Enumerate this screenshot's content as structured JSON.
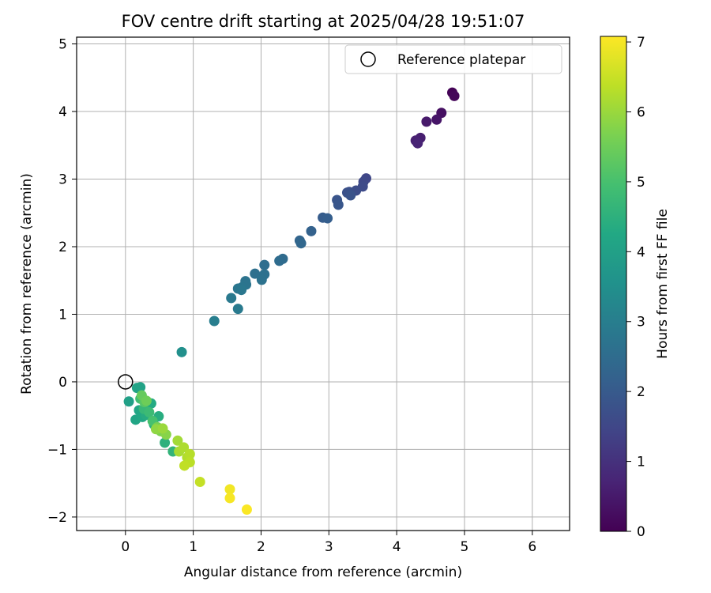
{
  "chart_data": {
    "type": "scatter",
    "title": "FOV centre drift starting at 2025/04/28 19:51:07",
    "xlabel": "Angular distance from reference (arcmin)",
    "ylabel": "Rotation from reference (arcmin)",
    "xlim": [
      -0.72,
      6.55
    ],
    "ylim": [
      -2.2,
      5.1
    ],
    "xticks": [
      0,
      1,
      2,
      3,
      4,
      5,
      6
    ],
    "yticks": [
      -2,
      -1,
      0,
      1,
      2,
      3,
      4,
      5
    ],
    "xtick_labels": [
      "0",
      "1",
      "2",
      "3",
      "4",
      "5",
      "6"
    ],
    "ytick_labels": [
      "−2",
      "−1",
      "0",
      "1",
      "2",
      "3",
      "4",
      "5"
    ],
    "grid": true,
    "legend": {
      "placement": "top-right",
      "entries": [
        {
          "label": "Reference platepar",
          "marker": "open-circle"
        }
      ]
    },
    "reference_point": {
      "x": 0,
      "y": 0
    },
    "colorbar": {
      "label": "Hours from first FF file",
      "range": [
        0,
        7.08
      ],
      "ticks": [
        0,
        1,
        2,
        3,
        4,
        5,
        6,
        7
      ],
      "tick_labels": [
        "0",
        "1",
        "2",
        "3",
        "4",
        "5",
        "6",
        "7"
      ],
      "colormap": "viridis"
    },
    "points": [
      {
        "x": 4.82,
        "y": 4.28,
        "t": 0.05
      },
      {
        "x": 4.85,
        "y": 4.23,
        "t": 0.1
      },
      {
        "x": 4.66,
        "y": 3.98,
        "t": 0.3
      },
      {
        "x": 4.59,
        "y": 3.88,
        "t": 0.4
      },
      {
        "x": 4.44,
        "y": 3.85,
        "t": 0.5
      },
      {
        "x": 4.35,
        "y": 3.61,
        "t": 0.6
      },
      {
        "x": 4.28,
        "y": 3.57,
        "t": 0.65
      },
      {
        "x": 4.31,
        "y": 3.53,
        "t": 0.7
      },
      {
        "x": 3.55,
        "y": 3.01,
        "t": 1.5
      },
      {
        "x": 3.51,
        "y": 2.96,
        "t": 1.55
      },
      {
        "x": 3.5,
        "y": 2.89,
        "t": 1.6
      },
      {
        "x": 3.4,
        "y": 2.83,
        "t": 1.65
      },
      {
        "x": 3.3,
        "y": 2.81,
        "t": 1.7
      },
      {
        "x": 3.27,
        "y": 2.8,
        "t": 1.75
      },
      {
        "x": 3.32,
        "y": 2.76,
        "t": 1.8
      },
      {
        "x": 3.12,
        "y": 2.69,
        "t": 1.85
      },
      {
        "x": 3.14,
        "y": 2.62,
        "t": 1.9
      },
      {
        "x": 2.91,
        "y": 2.43,
        "t": 2.05
      },
      {
        "x": 2.98,
        "y": 2.42,
        "t": 2.1
      },
      {
        "x": 2.74,
        "y": 2.23,
        "t": 2.2
      },
      {
        "x": 2.57,
        "y": 2.09,
        "t": 2.3
      },
      {
        "x": 2.59,
        "y": 2.05,
        "t": 2.35
      },
      {
        "x": 2.32,
        "y": 1.82,
        "t": 2.45
      },
      {
        "x": 2.27,
        "y": 1.79,
        "t": 2.5
      },
      {
        "x": 2.05,
        "y": 1.73,
        "t": 2.55
      },
      {
        "x": 1.91,
        "y": 1.6,
        "t": 2.6
      },
      {
        "x": 2.05,
        "y": 1.59,
        "t": 2.62
      },
      {
        "x": 2.01,
        "y": 1.51,
        "t": 2.65
      },
      {
        "x": 1.77,
        "y": 1.49,
        "t": 2.7
      },
      {
        "x": 1.78,
        "y": 1.44,
        "t": 2.72
      },
      {
        "x": 1.72,
        "y": 1.4,
        "t": 2.75
      },
      {
        "x": 1.66,
        "y": 1.38,
        "t": 2.78
      },
      {
        "x": 1.71,
        "y": 1.36,
        "t": 2.8
      },
      {
        "x": 1.56,
        "y": 1.24,
        "t": 2.85
      },
      {
        "x": 1.66,
        "y": 1.08,
        "t": 2.9
      },
      {
        "x": 1.31,
        "y": 0.9,
        "t": 3.0
      },
      {
        "x": 0.83,
        "y": 0.44,
        "t": 3.5
      },
      {
        "x": 0.05,
        "y": -0.29,
        "t": 4.0
      },
      {
        "x": 0.22,
        "y": -0.08,
        "t": 4.05
      },
      {
        "x": 0.17,
        "y": -0.09,
        "t": 4.1
      },
      {
        "x": 0.15,
        "y": -0.56,
        "t": 4.15
      },
      {
        "x": 0.2,
        "y": -0.42,
        "t": 4.2
      },
      {
        "x": 0.25,
        "y": -0.52,
        "t": 4.25
      },
      {
        "x": 0.38,
        "y": -0.32,
        "t": 4.3
      },
      {
        "x": 0.3,
        "y": -0.49,
        "t": 4.35
      },
      {
        "x": 0.49,
        "y": -0.51,
        "t": 4.4
      },
      {
        "x": 0.42,
        "y": -0.63,
        "t": 4.45
      },
      {
        "x": 0.58,
        "y": -0.9,
        "t": 4.5
      },
      {
        "x": 0.7,
        "y": -1.03,
        "t": 4.6
      },
      {
        "x": 0.27,
        "y": -0.4,
        "t": 4.7
      },
      {
        "x": 0.35,
        "y": -0.45,
        "t": 4.8
      },
      {
        "x": 0.22,
        "y": -0.25,
        "t": 4.9
      },
      {
        "x": 0.4,
        "y": -0.58,
        "t": 5.0
      },
      {
        "x": 0.28,
        "y": -0.3,
        "t": 5.2
      },
      {
        "x": 0.24,
        "y": -0.2,
        "t": 5.4
      },
      {
        "x": 0.31,
        "y": -0.28,
        "t": 5.5
      },
      {
        "x": 0.47,
        "y": -0.67,
        "t": 5.6
      },
      {
        "x": 0.52,
        "y": -0.73,
        "t": 5.7
      },
      {
        "x": 0.6,
        "y": -0.78,
        "t": 5.8
      },
      {
        "x": 0.45,
        "y": -0.7,
        "t": 5.9
      },
      {
        "x": 0.55,
        "y": -0.69,
        "t": 6.0
      },
      {
        "x": 0.77,
        "y": -0.87,
        "t": 6.1
      },
      {
        "x": 0.79,
        "y": -1.03,
        "t": 6.15
      },
      {
        "x": 0.86,
        "y": -0.97,
        "t": 6.2
      },
      {
        "x": 0.91,
        "y": -1.12,
        "t": 6.25
      },
      {
        "x": 0.95,
        "y": -1.07,
        "t": 6.3
      },
      {
        "x": 0.95,
        "y": -1.19,
        "t": 6.35
      },
      {
        "x": 0.87,
        "y": -1.24,
        "t": 6.4
      },
      {
        "x": 1.1,
        "y": -1.48,
        "t": 6.45
      },
      {
        "x": 1.54,
        "y": -1.59,
        "t": 6.95
      },
      {
        "x": 1.54,
        "y": -1.72,
        "t": 7.0
      },
      {
        "x": 1.79,
        "y": -1.89,
        "t": 7.05
      }
    ]
  }
}
